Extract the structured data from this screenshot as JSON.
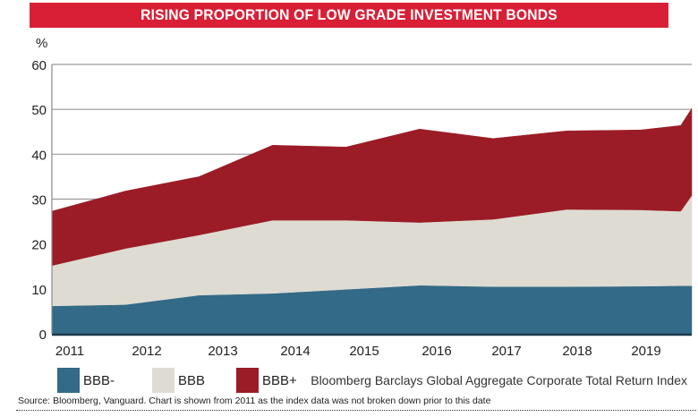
{
  "chart_data": {
    "type": "area",
    "stacked": true,
    "title": "RISING PROPORTION OF LOW GRADE INVESTMENT BONDS",
    "ylabel": "%",
    "xlabel": "",
    "ylim": [
      0,
      60
    ],
    "yticks": [
      0,
      10,
      20,
      30,
      40,
      50,
      60
    ],
    "grid": true,
    "x_tick_labels": [
      "2011",
      "2012",
      "2013",
      "2014",
      "2015",
      "2016",
      "2017",
      "2018",
      "2019"
    ],
    "x": [
      2011.0,
      2012.0,
      2013.0,
      2014.0,
      2015.0,
      2016.0,
      2017.0,
      2018.0,
      2019.0,
      2019.55,
      2019.7
    ],
    "series": [
      {
        "name": "BBB-",
        "color": "#336a87",
        "values": [
          6.2,
          6.5,
          8.6,
          9.0,
          9.9,
          10.8,
          10.5,
          10.5,
          10.6,
          10.7,
          10.7
        ]
      },
      {
        "name": "BBB",
        "color": "#dedbd2",
        "values": [
          9.0,
          12.5,
          13.4,
          16.3,
          15.4,
          14.0,
          15.0,
          17.2,
          17.0,
          16.6,
          20.1
        ]
      },
      {
        "name": "BBB+",
        "color": "#9b1c26",
        "values": [
          12.1,
          12.8,
          13.0,
          16.7,
          16.3,
          20.8,
          18.0,
          17.5,
          17.8,
          19.1,
          19.4
        ]
      }
    ],
    "legend_position": "bottom-left",
    "annotation": "Bloomberg Barclays Global Aggregate Corporate Total Return Index"
  },
  "unit_label": "%",
  "legend": [
    {
      "label": "BBB-",
      "color": "#336a87"
    },
    {
      "label": "BBB",
      "color": "#dedbd2"
    },
    {
      "label": "BBB+",
      "color": "#9b1c26"
    }
  ],
  "index_note": "Bloomberg Barclays Global Aggregate Corporate Total Return Index",
  "source": "Source: Bloomberg, Vanguard. Chart is shown from 2011 as the index data was not broken down prior to this date",
  "banner_color": "#d91f36"
}
